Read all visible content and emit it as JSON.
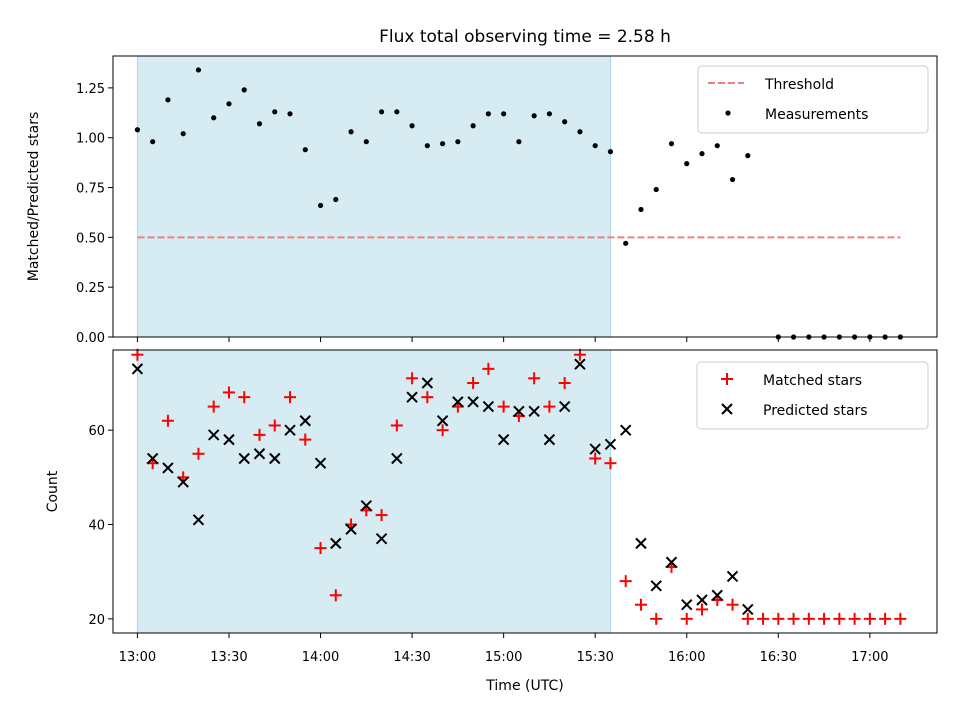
{
  "chart_data": [
    {
      "type": "scatter",
      "title": "Flux total observing time = 2.58 h",
      "ylabel": "Matched/Predicted stars",
      "xlabel": "",
      "ylim": [
        0,
        1.41
      ],
      "yticks": [
        0.0,
        0.25,
        0.5,
        0.75,
        1.0,
        1.25
      ],
      "ytick_labels": [
        "0.00",
        "0.25",
        "0.50",
        "0.75",
        "1.00",
        "1.25"
      ],
      "shaded_region": {
        "x_start": 780,
        "x_end": 935,
        "color": "#add8e6"
      },
      "threshold": {
        "name": "Threshold",
        "value": 0.5,
        "x_start": 780,
        "x_end": 1030,
        "color": "#f08080"
      },
      "series": [
        {
          "name": "Measurements",
          "color": "#000000",
          "x": [
            780,
            785,
            790,
            795,
            800,
            805,
            810,
            815,
            820,
            825,
            830,
            835,
            840,
            845,
            850,
            855,
            860,
            865,
            870,
            875,
            880,
            885,
            890,
            895,
            900,
            905,
            910,
            915,
            920,
            925,
            930,
            935,
            940,
            945,
            950,
            955,
            960,
            965,
            970,
            975,
            980,
            985,
            990,
            995,
            1000,
            1005,
            1010,
            1015,
            1020,
            1025,
            1030
          ],
          "y": [
            1.04,
            0.98,
            1.19,
            1.02,
            1.34,
            1.1,
            1.17,
            1.24,
            1.07,
            1.13,
            1.12,
            0.94,
            0.66,
            0.69,
            1.03,
            0.98,
            1.13,
            1.13,
            1.06,
            0.96,
            0.97,
            0.98,
            1.06,
            1.12,
            1.12,
            0.98,
            1.11,
            1.12,
            1.08,
            1.03,
            0.96,
            0.93,
            0.47,
            0.64,
            0.74,
            0.97,
            0.87,
            0.92,
            0.96,
            0.79,
            0.91,
            null,
            0.0,
            0.0,
            0.0,
            0.0,
            0.0,
            0.0,
            0.0,
            0.0,
            0.0
          ]
        }
      ],
      "legend": [
        "Threshold",
        "Measurements"
      ],
      "legend_position": "top-right"
    },
    {
      "type": "scatter",
      "title": "",
      "ylabel": "Count",
      "xlabel": "Time (UTC)",
      "ylim": [
        17,
        77
      ],
      "yticks": [
        20,
        40,
        60
      ],
      "ytick_labels": [
        "20",
        "40",
        "60"
      ],
      "xticks": [
        780,
        810,
        840,
        870,
        900,
        930,
        960,
        990,
        1020
      ],
      "xtick_labels": [
        "13:00",
        "13:30",
        "14:00",
        "14:30",
        "15:00",
        "15:30",
        "16:00",
        "16:30",
        "17:00"
      ],
      "xlim": [
        772,
        1042
      ],
      "shaded_region": {
        "x_start": 780,
        "x_end": 935,
        "color": "#add8e6"
      },
      "series": [
        {
          "name": "Matched stars",
          "color": "#ff0000",
          "marker": "plus",
          "x": [
            780,
            785,
            790,
            795,
            800,
            805,
            810,
            815,
            820,
            825,
            830,
            835,
            840,
            845,
            850,
            855,
            860,
            865,
            870,
            875,
            880,
            885,
            890,
            895,
            900,
            905,
            910,
            915,
            920,
            925,
            930,
            935,
            940,
            945,
            950,
            955,
            960,
            965,
            970,
            975,
            980,
            985,
            990,
            995,
            1000,
            1005,
            1010,
            1015,
            1020,
            1025,
            1030
          ],
          "y": [
            76,
            53,
            62,
            50,
            55,
            65,
            68,
            67,
            59,
            61,
            67,
            58,
            35,
            25,
            40,
            43,
            42,
            61,
            71,
            67,
            60,
            65,
            70,
            73,
            65,
            63,
            71,
            65,
            70,
            76,
            54,
            53,
            28,
            23,
            20,
            31,
            20,
            22,
            24,
            23,
            20,
            20,
            20,
            20,
            20,
            20,
            20,
            20,
            20,
            20,
            20
          ]
        },
        {
          "name": "Predicted stars",
          "color": "#000000",
          "marker": "x",
          "x": [
            780,
            785,
            790,
            795,
            800,
            805,
            810,
            815,
            820,
            825,
            830,
            835,
            840,
            845,
            850,
            855,
            860,
            865,
            870,
            875,
            880,
            885,
            890,
            895,
            900,
            905,
            910,
            915,
            920,
            925,
            930,
            935,
            940,
            945,
            950,
            955,
            960,
            965,
            970,
            975,
            980
          ],
          "y": [
            73,
            54,
            52,
            49,
            41,
            59,
            58,
            54,
            55,
            54,
            60,
            62,
            53,
            36,
            39,
            44,
            37,
            54,
            67,
            70,
            62,
            66,
            66,
            65,
            58,
            64,
            64,
            58,
            65,
            74,
            56,
            57,
            60,
            36,
            27,
            32,
            23,
            24,
            25,
            29,
            22
          ]
        }
      ],
      "legend": [
        "Matched stars",
        "Predicted stars"
      ],
      "legend_position": "top-right"
    }
  ]
}
